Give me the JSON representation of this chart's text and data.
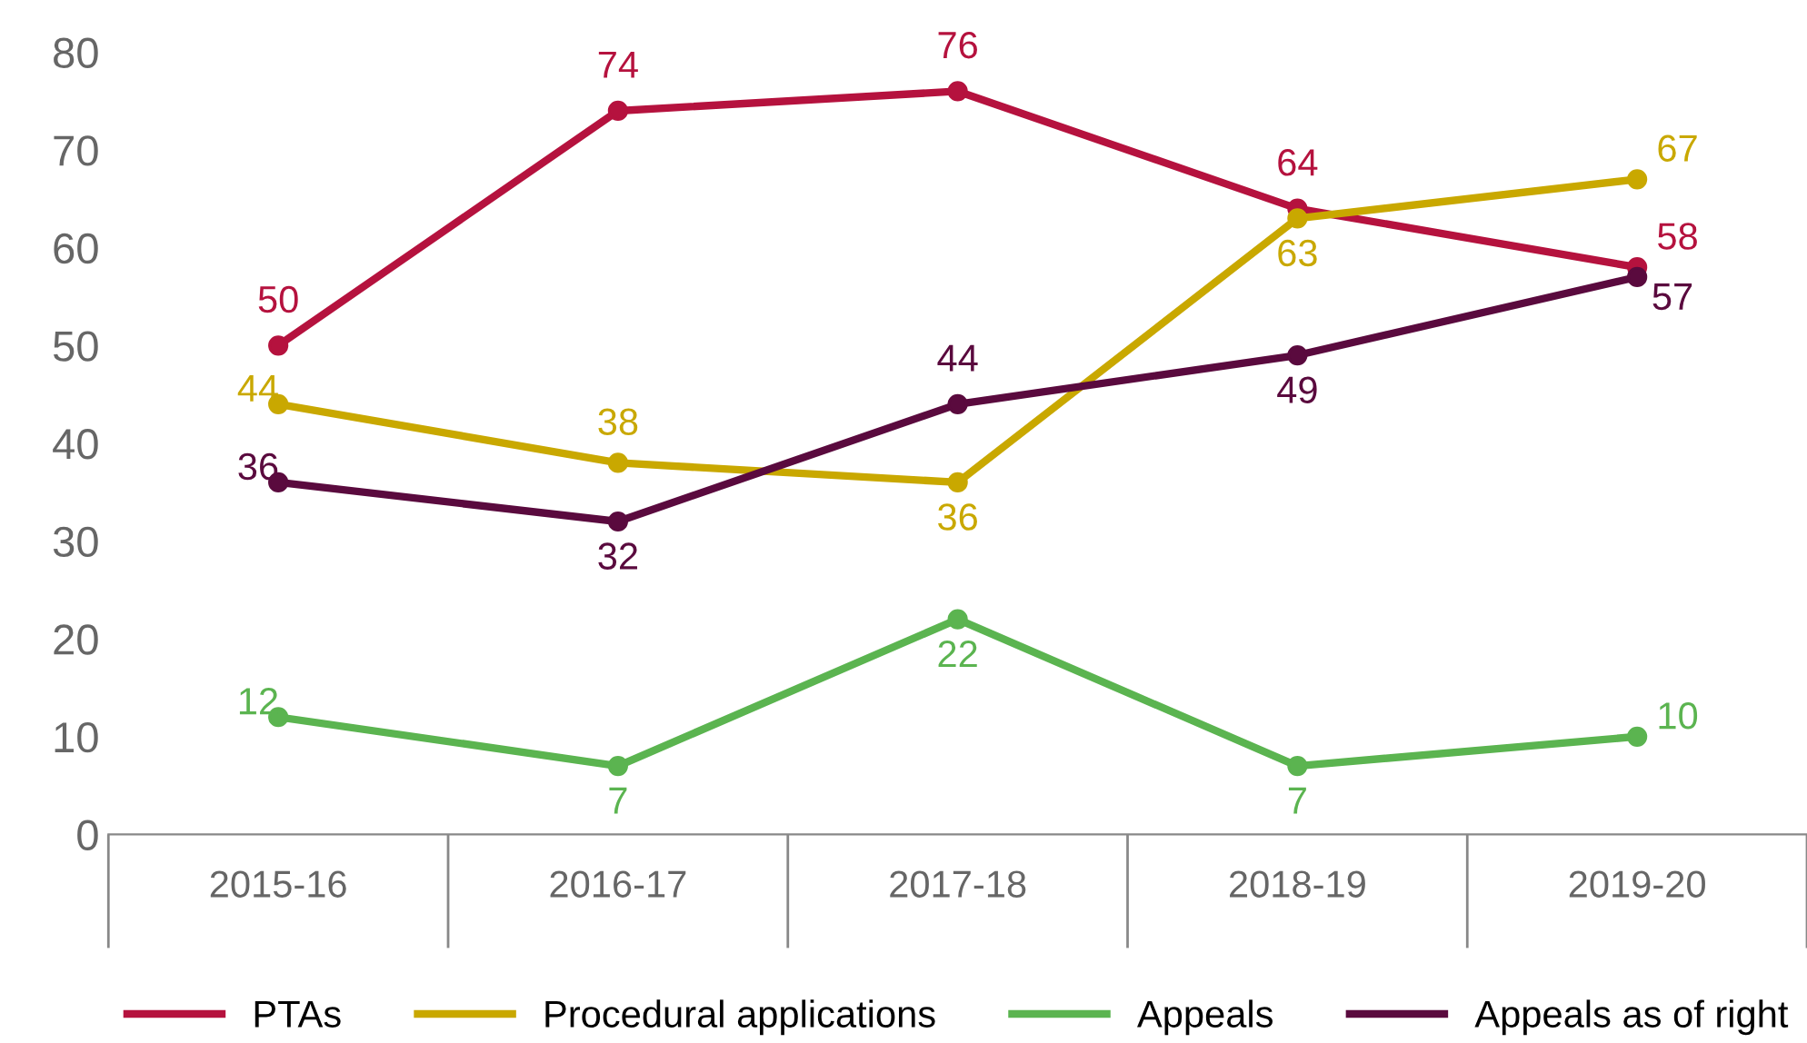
{
  "chart_data": {
    "type": "line",
    "categories": [
      "2015-16",
      "2016-17",
      "2017-18",
      "2018-19",
      "2019-20"
    ],
    "series": [
      {
        "name": "PTAs",
        "color": "#b5123e",
        "values": [
          50,
          74,
          76,
          64,
          58
        ]
      },
      {
        "name": "Procedural applications",
        "color": "#c9a800",
        "values": [
          44,
          38,
          36,
          63,
          67
        ]
      },
      {
        "name": "Appeals",
        "color": "#5bb450",
        "values": [
          12,
          7,
          22,
          7,
          10
        ]
      },
      {
        "name": "Appeals as of right",
        "color": "#5a0a3e",
        "values": [
          36,
          32,
          44,
          49,
          57
        ]
      }
    ],
    "ylim": [
      0,
      80
    ],
    "yticks": [
      0,
      10,
      20,
      30,
      40,
      50,
      60,
      70,
      80
    ],
    "grid": false,
    "legend": "bottom",
    "marker": "circle",
    "line_style": "solid",
    "data_labels": true
  }
}
